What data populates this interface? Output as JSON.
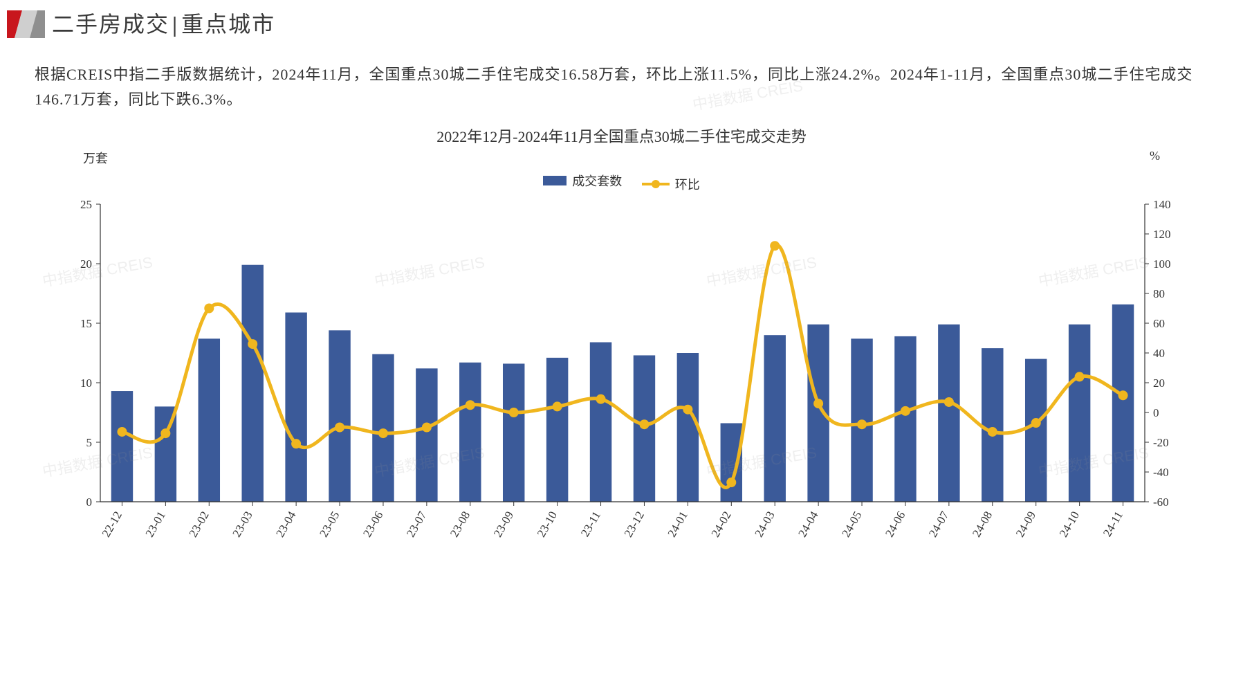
{
  "header": {
    "title_left": "二手房成交",
    "title_sep": "|",
    "title_right": "重点城市",
    "logo_colors": {
      "red": "#c8161d",
      "gray_light": "#cfcfcf",
      "gray_dark": "#8f8f8f"
    }
  },
  "summary": {
    "text": "根据CREIS中指二手版数据统计，2024年11月，全国重点30城二手住宅成交16.58万套，环比上涨11.5%，同比上涨24.2%。2024年1-11月，全国重点30城二手住宅成交146.71万套，同比下跌6.3%。"
  },
  "chart": {
    "type": "bar+line",
    "title": "2022年12月-2024年11月全国重点30城二手住宅成交走势",
    "y_left": {
      "label": "万套",
      "min": 0,
      "max": 25,
      "step": 5
    },
    "y_right": {
      "label": "%",
      "min": -60,
      "max": 140,
      "step": 20
    },
    "categories": [
      "22-12",
      "23-01",
      "23-02",
      "23-03",
      "23-04",
      "23-05",
      "23-06",
      "23-07",
      "23-08",
      "23-09",
      "23-10",
      "23-11",
      "23-12",
      "24-01",
      "24-02",
      "24-03",
      "24-04",
      "24-05",
      "24-06",
      "24-07",
      "24-08",
      "24-09",
      "24-10",
      "24-11"
    ],
    "bar_series": {
      "name": "成交套数",
      "color": "#3b5a99",
      "values": [
        9.3,
        8.0,
        13.7,
        19.9,
        15.9,
        14.4,
        12.4,
        11.2,
        11.7,
        11.6,
        12.1,
        13.4,
        12.3,
        12.5,
        6.6,
        14.0,
        14.9,
        13.7,
        13.9,
        14.9,
        12.9,
        12.0,
        14.9,
        16.58
      ]
    },
    "line_series": {
      "name": "环比",
      "color": "#f0b61e",
      "line_width": 5,
      "marker_radius": 7,
      "values": [
        -13,
        -14,
        70,
        46,
        -21,
        -10,
        -14,
        -10,
        5,
        0,
        4,
        9,
        -8,
        2,
        -47,
        112,
        6,
        -8,
        1,
        7,
        -13,
        -7,
        24,
        11.5
      ]
    },
    "legend": [
      {
        "label": "成交套数",
        "type": "bar",
        "color": "#3b5a99"
      },
      {
        "label": "环比",
        "type": "line",
        "color": "#f0b61e"
      }
    ],
    "plot": {
      "bg": "#ffffff",
      "axis_color": "#333333",
      "tick_color": "#333333",
      "grid": "off",
      "bar_width_ratio": 0.5,
      "x_label_rotation_deg": -60,
      "x_tick_fontsize": 17,
      "y_tick_fontsize": 17,
      "title_fontsize": 22
    }
  },
  "watermark": {
    "text": "中指数据 CREIS",
    "color": "rgba(150,150,150,0.15)"
  }
}
